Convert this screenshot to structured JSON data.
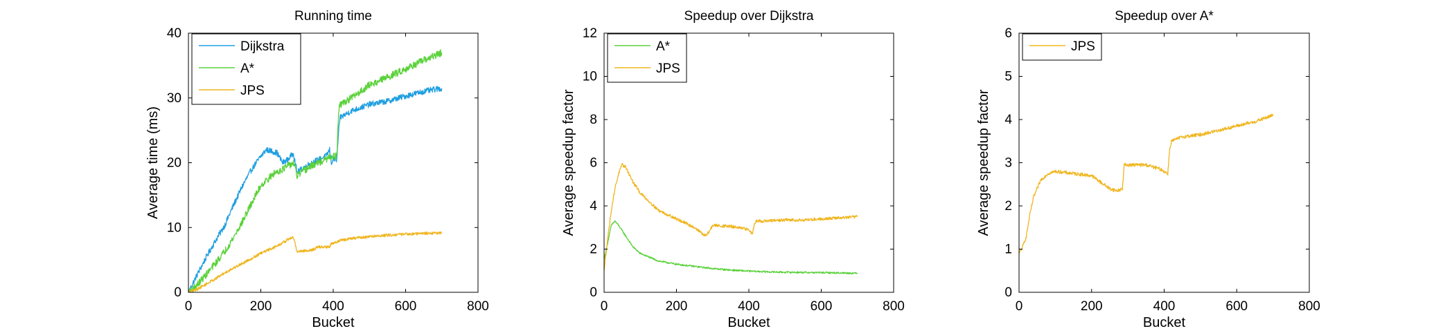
{
  "chart_data": [
    {
      "type": "line",
      "title": "Running time",
      "xlabel": "Bucket",
      "ylabel": "Average time (ms)",
      "xlim": [
        0,
        800
      ],
      "ylim": [
        0,
        40
      ],
      "xticks": [
        "0",
        "200",
        "400",
        "600",
        "800"
      ],
      "yticks": [
        "0",
        "10",
        "20",
        "30",
        "40"
      ],
      "grid": false,
      "legend": "top-left",
      "series": [
        {
          "name": "Dijkstra",
          "color": "#1f9fe0",
          "noise": 0.45,
          "x": [
            0,
            25,
            50,
            75,
            100,
            125,
            150,
            175,
            200,
            215,
            230,
            245,
            260,
            275,
            290,
            300,
            320,
            340,
            360,
            380,
            390,
            395,
            400,
            410,
            415,
            420,
            450,
            500,
            550,
            600,
            650,
            700
          ],
          "y": [
            0,
            2.8,
            5.5,
            8,
            10.3,
            13.5,
            16.5,
            19,
            21,
            22,
            21.8,
            21.5,
            20,
            20.5,
            21.5,
            18.5,
            19.3,
            20,
            20.5,
            21,
            22,
            20,
            20.5,
            20.5,
            25,
            27,
            28,
            29,
            29.5,
            30.3,
            31,
            31.5
          ]
        },
        {
          "name": "A*",
          "color": "#5ad13a",
          "noise": 0.55,
          "x": [
            0,
            25,
            50,
            75,
            100,
            125,
            150,
            175,
            200,
            220,
            240,
            260,
            275,
            290,
            300,
            320,
            340,
            360,
            380,
            400,
            410,
            415,
            420,
            450,
            500,
            550,
            600,
            650,
            700
          ],
          "y": [
            0,
            1.2,
            2.8,
            4.5,
            6.3,
            8.5,
            11,
            13.8,
            16.5,
            17.5,
            18.5,
            19,
            19.5,
            20,
            18,
            18.8,
            19.5,
            20,
            20.5,
            21,
            21,
            28,
            29,
            30,
            32,
            33.2,
            34.5,
            35.8,
            37
          ]
        },
        {
          "name": "JPS",
          "color": "#f0b51d",
          "noise": 0.22,
          "x": [
            0,
            25,
            50,
            75,
            100,
            150,
            200,
            250,
            280,
            290,
            300,
            340,
            360,
            390,
            395,
            400,
            410,
            420,
            450,
            500,
            550,
            600,
            650,
            700
          ],
          "y": [
            0,
            0.5,
            1.3,
            2.1,
            3,
            4.5,
            6,
            7.3,
            8.3,
            8.5,
            6.3,
            6.5,
            7,
            7,
            7.5,
            7.6,
            7.8,
            8,
            8.3,
            8.6,
            8.8,
            9,
            9.1,
            9.2
          ]
        }
      ]
    },
    {
      "type": "line",
      "title": "Speedup over Dijkstra",
      "xlabel": "Bucket",
      "ylabel": "Average speedup factor",
      "xlim": [
        0,
        800
      ],
      "ylim": [
        0,
        12
      ],
      "xticks": [
        "0",
        "200",
        "400",
        "600",
        "800"
      ],
      "yticks": [
        "0",
        "2",
        "4",
        "6",
        "8",
        "10",
        "12"
      ],
      "grid": false,
      "legend": "top-left",
      "series": [
        {
          "name": "A*",
          "color": "#5ad13a",
          "noise": 0.04,
          "x": [
            0,
            10,
            20,
            30,
            40,
            60,
            80,
            100,
            150,
            200,
            250,
            300,
            350,
            400,
            450,
            500,
            550,
            600,
            650,
            700
          ],
          "y": [
            1.5,
            2.3,
            3.1,
            3.3,
            3.1,
            2.6,
            2.1,
            1.8,
            1.45,
            1.3,
            1.2,
            1.1,
            1.03,
            0.98,
            0.95,
            0.93,
            0.92,
            0.91,
            0.9,
            0.88
          ]
        },
        {
          "name": "JPS",
          "color": "#f0b51d",
          "noise": 0.07,
          "x": [
            0,
            10,
            20,
            30,
            40,
            50,
            60,
            80,
            100,
            150,
            200,
            250,
            280,
            290,
            300,
            350,
            400,
            410,
            415,
            420,
            450,
            500,
            550,
            600,
            650,
            700
          ],
          "y": [
            1,
            2.5,
            3.8,
            4.8,
            5.5,
            5.9,
            5.8,
            5.1,
            4.6,
            3.8,
            3.4,
            3,
            2.6,
            2.8,
            3.1,
            3.05,
            2.9,
            2.7,
            3.2,
            3.3,
            3.3,
            3.35,
            3.35,
            3.4,
            3.45,
            3.5
          ]
        }
      ]
    },
    {
      "type": "line",
      "title": "Speedup over A*",
      "xlabel": "Bucket",
      "ylabel": "Average speedup factor",
      "xlim": [
        0,
        800
      ],
      "ylim": [
        0,
        6
      ],
      "xticks": [
        "0",
        "200",
        "400",
        "600",
        "800"
      ],
      "yticks": [
        "0",
        "1",
        "2",
        "3",
        "4",
        "5",
        "6"
      ],
      "grid": false,
      "legend": "top-left",
      "series": [
        {
          "name": "JPS",
          "color": "#f0b51d",
          "noise": 0.04,
          "x": [
            0,
            10,
            20,
            30,
            40,
            60,
            80,
            100,
            150,
            200,
            250,
            270,
            285,
            290,
            300,
            350,
            390,
            400,
            410,
            415,
            420,
            450,
            500,
            550,
            600,
            650,
            700
          ],
          "y": [
            0.9,
            1.05,
            1.3,
            1.8,
            2.2,
            2.6,
            2.75,
            2.8,
            2.75,
            2.7,
            2.4,
            2.35,
            2.4,
            2.95,
            2.95,
            2.95,
            2.85,
            2.8,
            2.75,
            3.3,
            3.5,
            3.6,
            3.65,
            3.75,
            3.85,
            3.95,
            4.1
          ]
        }
      ]
    }
  ]
}
